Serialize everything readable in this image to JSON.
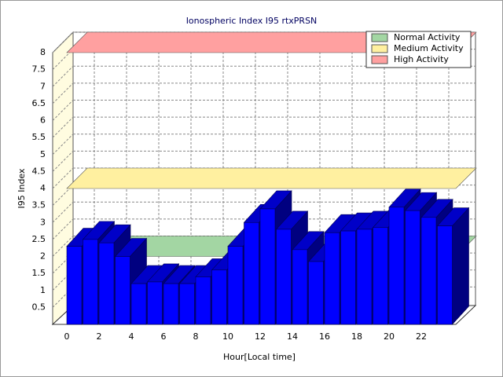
{
  "chart_data": {
    "type": "bar3d",
    "title": "Ionospheric Index I95 rtxPRSN",
    "x_label": "Hour[Local time]",
    "y_label": "I95 Index",
    "categories": [
      "0",
      null,
      "2",
      null,
      "4",
      null,
      "6",
      null,
      "8",
      null,
      "10",
      null,
      "12",
      null,
      "14",
      null,
      "16",
      null,
      "18",
      null,
      "20",
      null,
      "22",
      null
    ],
    "values": [
      2.3,
      2.5,
      2.4,
      2.0,
      1.2,
      1.25,
      1.2,
      1.2,
      1.4,
      1.6,
      2.3,
      3.0,
      3.4,
      2.8,
      2.2,
      1.85,
      2.7,
      2.75,
      2.8,
      2.85,
      3.45,
      3.35,
      3.15,
      2.9
    ],
    "color": "#0000ff",
    "ylim": [
      0,
      8
    ],
    "yticks": [
      0.5,
      1,
      1.5,
      2,
      2.5,
      3,
      3.5,
      4,
      4.5,
      5,
      5.5,
      6,
      6.5,
      7,
      7.5,
      8
    ],
    "grid": true,
    "thresholds": [
      {
        "name": "Normal Activity",
        "color": "#a3d6a3",
        "value": 2
      },
      {
        "name": "Medium Activity",
        "color": "#fff0a0",
        "value": 4
      },
      {
        "name": "High Activity",
        "color": "#ffa0a0",
        "value": 8
      }
    ],
    "legend": "upper right"
  }
}
